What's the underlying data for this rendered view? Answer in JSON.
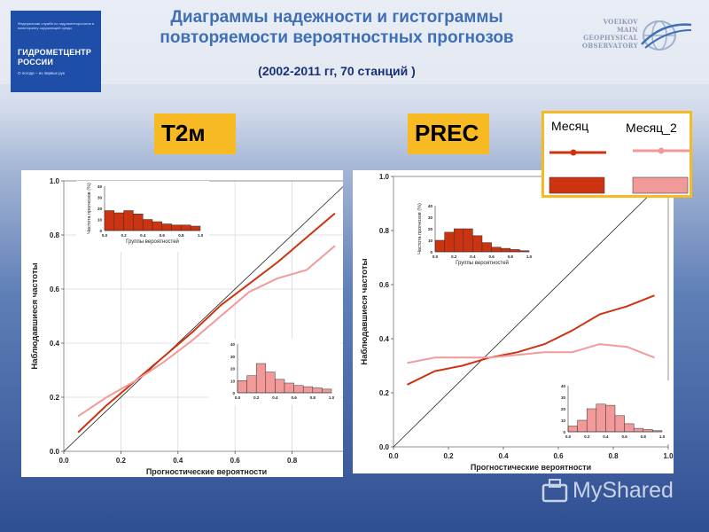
{
  "header": {
    "title_line1": "Диаграммы надежности и гистограммы",
    "title_line2": "повторяемости вероятностных прогнозов",
    "subtitle": "(2002-2011 гг, 70 станций )"
  },
  "logo_left": {
    "small_text": "Федеральная служба по гидрометеорологии и мониторингу окружающей среды",
    "name_line1": "ГИДРОМЕТЦЕНТР",
    "name_line2": "РОССИИ",
    "slogan": "О погоде – из первых рук"
  },
  "logo_right": {
    "line1": "VOEIKOV",
    "line2": "MAIN",
    "line3": "GEOPHYSICAL",
    "line4": "OBSERVATORY"
  },
  "labels": {
    "left": "T2м",
    "right": "PREC"
  },
  "legend": {
    "items": [
      {
        "name": "Месяц",
        "color": "#cc3311"
      },
      {
        "name": "Месяц_2",
        "color": "#f29a9a"
      }
    ]
  },
  "watermark": {
    "text": "MyShared"
  },
  "chart_data": [
    {
      "type": "line",
      "id": "T2m",
      "xlabel": "Прогностические вероятности",
      "ylabel": "Наблюдавшиеся частоты",
      "xlim": [
        0,
        1
      ],
      "ylim": [
        0,
        1
      ],
      "ticks": [
        "0.0",
        "0.2",
        "0.4",
        "0.6",
        "0.8",
        "1.0"
      ],
      "grid": true,
      "series": [
        {
          "name": "Месяц",
          "color": "#cc3311",
          "points": [
            [
              0.05,
              0.07
            ],
            [
              0.15,
              0.17
            ],
            [
              0.25,
              0.26
            ],
            [
              0.35,
              0.35
            ],
            [
              0.45,
              0.44
            ],
            [
              0.55,
              0.54
            ],
            [
              0.65,
              0.62
            ],
            [
              0.75,
              0.7
            ],
            [
              0.85,
              0.79
            ],
            [
              0.95,
              0.88
            ]
          ]
        },
        {
          "name": "Месяц_2",
          "color": "#f29a9a",
          "points": [
            [
              0.05,
              0.13
            ],
            [
              0.15,
              0.2
            ],
            [
              0.25,
              0.26
            ],
            [
              0.35,
              0.33
            ],
            [
              0.45,
              0.41
            ],
            [
              0.55,
              0.5
            ],
            [
              0.65,
              0.59
            ],
            [
              0.75,
              0.64
            ],
            [
              0.85,
              0.67
            ],
            [
              0.95,
              0.76
            ]
          ]
        }
      ],
      "insets": [
        {
          "ylabel": "Частота прогнозов (%)",
          "xlabel": "Группы вероятностей",
          "yticks": [
            "0",
            "10",
            "20",
            "30",
            "40"
          ],
          "xticks": [
            "0.0",
            "0.2",
            "0.4",
            "0.6",
            "0.8",
            "1.0"
          ],
          "ymax": 40,
          "color": "#cc3311",
          "values": [
            18,
            16,
            18,
            15,
            10,
            8,
            6,
            5,
            5,
            4
          ]
        },
        {
          "ylabel": "",
          "xlabel": "",
          "yticks": [
            "0",
            "10",
            "20",
            "30",
            "40"
          ],
          "xticks": [
            "0.0",
            "0.2",
            "0.4",
            "0.6",
            "0.8",
            "1.0"
          ],
          "ymax": 40,
          "color": "#f29a9a",
          "values": [
            10,
            14,
            24,
            17,
            11,
            8,
            6,
            5,
            4,
            3
          ]
        }
      ]
    },
    {
      "type": "line",
      "id": "PREC",
      "xlabel": "Прогностические вероятности",
      "ylabel": "Наблюдавшиеся частоты",
      "xlim": [
        0,
        1
      ],
      "ylim": [
        0,
        1
      ],
      "ticks": [
        "0.0",
        "0.2",
        "0.4",
        "0.6",
        "0.8",
        "1.0"
      ],
      "grid": false,
      "series": [
        {
          "name": "Месяц",
          "color": "#cc3311",
          "points": [
            [
              0.05,
              0.23
            ],
            [
              0.15,
              0.28
            ],
            [
              0.25,
              0.3
            ],
            [
              0.35,
              0.33
            ],
            [
              0.45,
              0.35
            ],
            [
              0.55,
              0.38
            ],
            [
              0.65,
              0.43
            ],
            [
              0.75,
              0.49
            ],
            [
              0.85,
              0.52
            ],
            [
              0.95,
              0.56
            ]
          ]
        },
        {
          "name": "Месяц_2",
          "color": "#f29a9a",
          "points": [
            [
              0.05,
              0.31
            ],
            [
              0.15,
              0.33
            ],
            [
              0.25,
              0.33
            ],
            [
              0.35,
              0.33
            ],
            [
              0.45,
              0.34
            ],
            [
              0.55,
              0.35
            ],
            [
              0.65,
              0.35
            ],
            [
              0.75,
              0.38
            ],
            [
              0.85,
              0.37
            ],
            [
              0.95,
              0.33
            ]
          ]
        }
      ],
      "insets": [
        {
          "ylabel": "Частота прогнозов (%)",
          "xlabel": "Группы вероятностей",
          "yticks": [
            "0",
            "10",
            "20",
            "30",
            "40"
          ],
          "xticks": [
            "0.0",
            "0.2",
            "0.4",
            "0.6",
            "0.8",
            "1.0"
          ],
          "ymax": 40,
          "color": "#cc3311",
          "values": [
            10,
            17,
            20,
            20,
            14,
            8,
            4,
            3,
            2,
            1
          ]
        },
        {
          "ylabel": "",
          "xlabel": "",
          "yticks": [
            "0",
            "10",
            "20",
            "30",
            "40"
          ],
          "xticks": [
            "0.0",
            "0.2",
            "0.4",
            "0.6",
            "0.8",
            "1.0"
          ],
          "ymax": 40,
          "color": "#f29a9a",
          "values": [
            5,
            10,
            20,
            24,
            23,
            14,
            7,
            3,
            2,
            1
          ]
        }
      ]
    }
  ]
}
